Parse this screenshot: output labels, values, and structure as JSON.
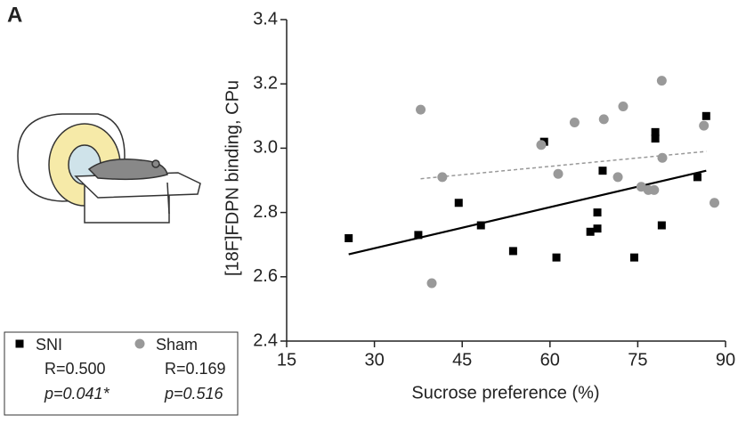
{
  "panel_label": "A",
  "chart_data": {
    "type": "scatter",
    "xlabel": "Sucrose preference (%)",
    "ylabel": "[18F]FDPN binding, CPu",
    "xlim": [
      15,
      90
    ],
    "xticks": [
      15,
      30,
      45,
      60,
      75,
      90
    ],
    "ylim": [
      2.4,
      3.4
    ],
    "yticks": [
      2.4,
      2.6,
      2.8,
      {
        "value": 3,
        "label": "3.0"
      },
      3.2,
      3.4
    ],
    "series": [
      {
        "name": "SNI",
        "marker": "square",
        "color": "#000000",
        "line_style": "solid",
        "stats": [
          "R=0.500",
          "p=0.041*"
        ],
        "x": [
          25.6,
          37.5,
          44.4,
          48.2,
          53.7,
          59.0,
          61.1,
          66.9,
          68.1,
          68.1,
          69.0,
          74.4,
          78.0,
          78.0,
          79.1,
          85.2,
          86.7
        ],
        "y": [
          2.72,
          2.73,
          2.83,
          2.76,
          2.68,
          3.02,
          2.66,
          2.74,
          2.8,
          2.75,
          2.93,
          2.66,
          3.05,
          3.03,
          2.76,
          2.91,
          3.1
        ],
        "fit": {
          "x": [
            25.6,
            86.7
          ],
          "y": [
            2.67,
            2.93
          ]
        }
      },
      {
        "name": "Sham",
        "marker": "circle",
        "color": "#999999",
        "line_style": "dashed",
        "stats": [
          "R=0.169",
          "p=0.516"
        ],
        "x": [
          37.9,
          39.8,
          41.6,
          58.5,
          61.4,
          64.2,
          69.2,
          71.6,
          72.5,
          75.6,
          76.8,
          77.8,
          79.1,
          79.2,
          86.3,
          88.1
        ],
        "y": [
          3.12,
          2.58,
          2.91,
          3.01,
          2.92,
          3.08,
          3.09,
          2.91,
          3.13,
          2.88,
          2.87,
          2.87,
          3.21,
          2.97,
          3.07,
          2.83
        ],
        "fit": {
          "x": [
            37.9,
            86.7
          ],
          "y": [
            2.905,
            2.99
          ]
        }
      }
    ]
  }
}
